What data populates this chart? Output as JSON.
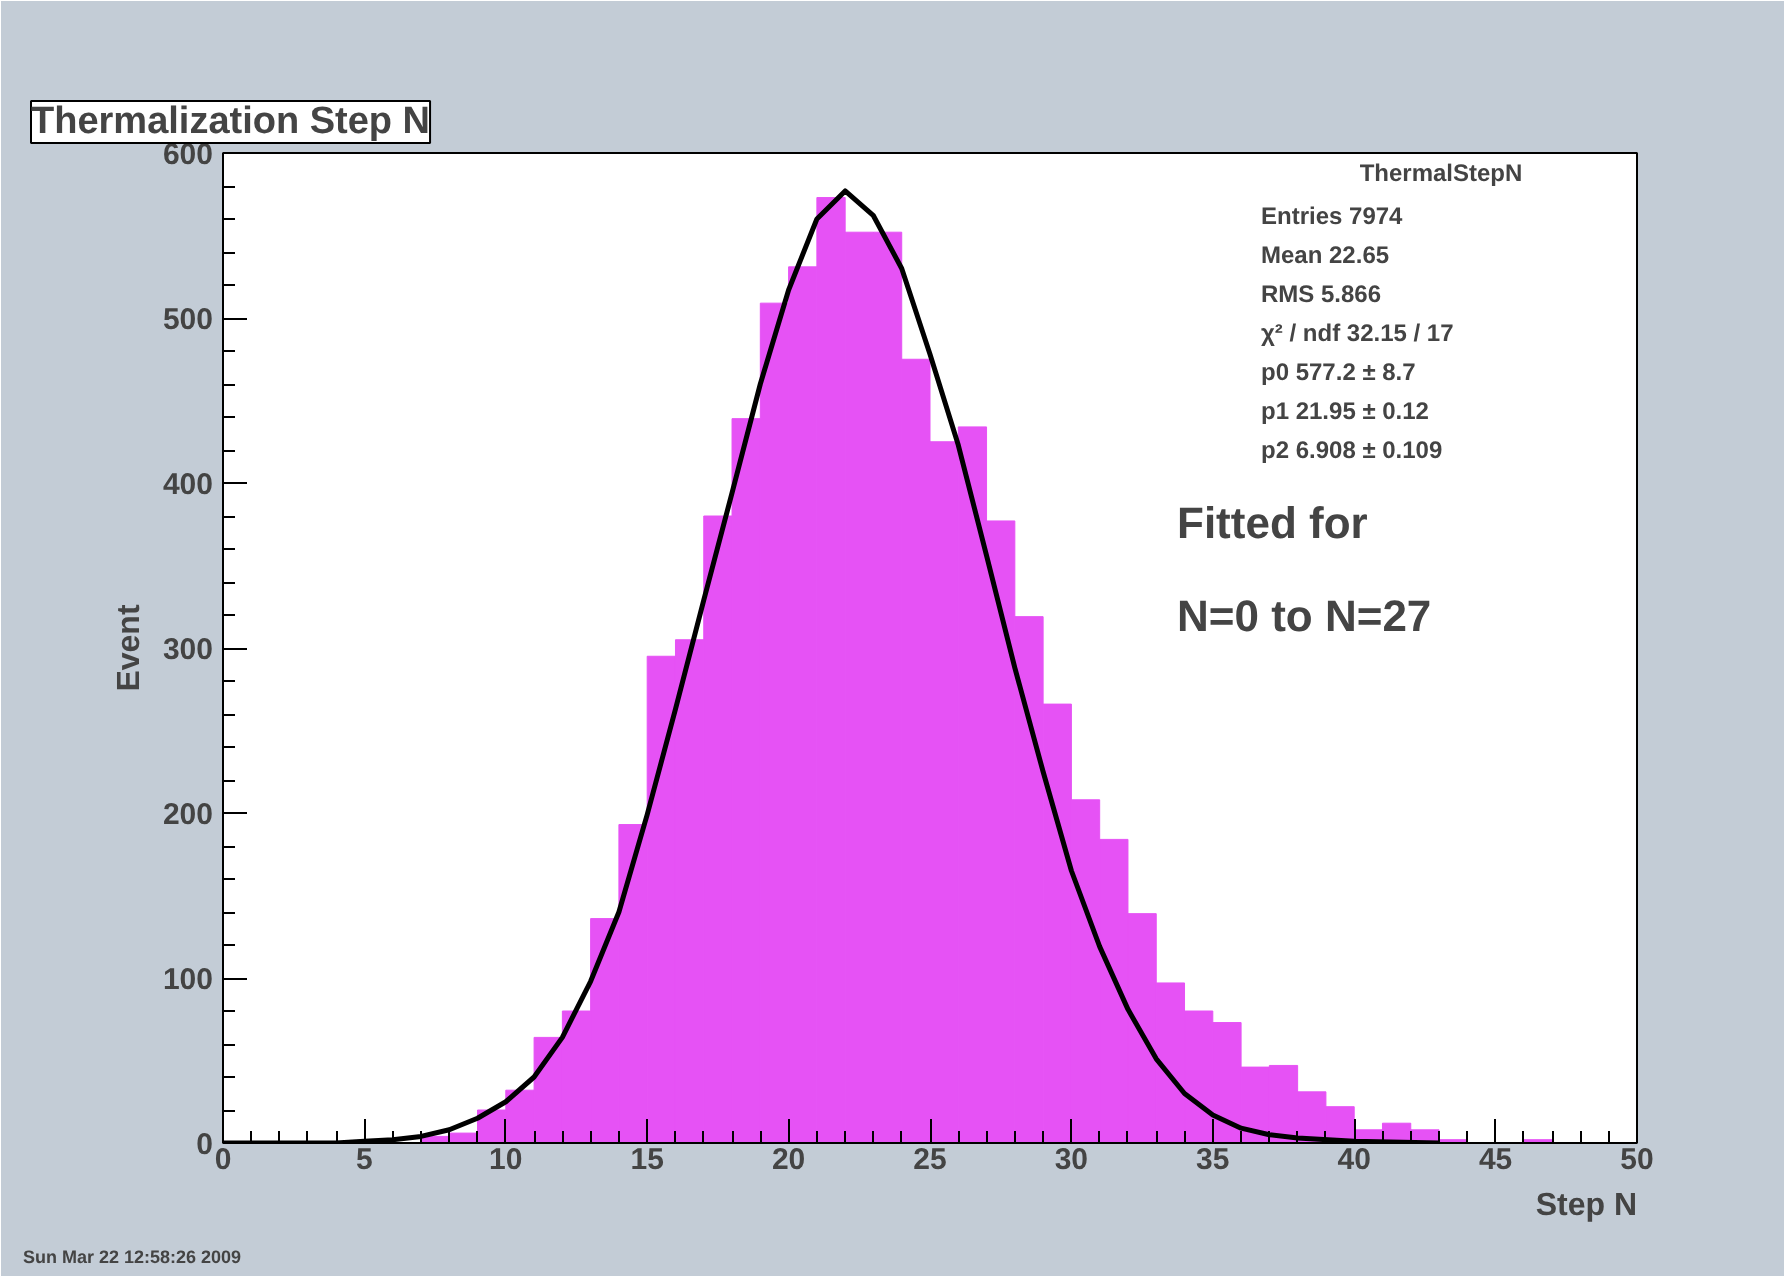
{
  "chart_data": {
    "type": "histogram",
    "title": "Thermalization Step N",
    "xlabel": "Step N",
    "ylabel": "Event",
    "bins": [
      0,
      1,
      2,
      3,
      4,
      5,
      6,
      7,
      8,
      9,
      10,
      11,
      12,
      13,
      14,
      15,
      16,
      17,
      18,
      19,
      20,
      21,
      22,
      23,
      24,
      25,
      26,
      27,
      28,
      29,
      30,
      31,
      32,
      33,
      34,
      35,
      36,
      37,
      38,
      39,
      40,
      41,
      42,
      43,
      44,
      45,
      46,
      47,
      48,
      49,
      50
    ],
    "values": [
      0,
      0,
      0,
      0,
      0,
      0,
      null,
      4,
      6,
      20,
      32,
      64,
      80,
      136,
      193,
      295,
      305,
      380,
      439,
      509,
      531,
      573,
      552,
      552,
      475,
      425,
      434,
      377,
      319,
      266,
      208,
      184,
      139,
      97,
      80,
      73,
      46,
      47,
      31,
      22,
      8,
      12,
      8,
      2,
      null,
      0,
      2,
      null,
      0,
      0
    ],
    "color": "#e652f5",
    "series": [
      {
        "type": "line",
        "color": "#000000",
        "x": [
          0,
          1,
          2,
          3,
          4,
          5,
          6,
          7,
          8,
          9,
          10,
          11,
          12,
          13,
          14,
          15,
          16,
          17,
          18,
          19,
          20,
          21,
          22,
          23,
          24,
          25,
          26,
          27,
          28,
          29,
          30,
          31,
          32,
          33,
          34,
          35,
          36,
          37,
          38,
          40,
          43
        ],
        "values": [
          0,
          0,
          0,
          0,
          0,
          1,
          2,
          4,
          8,
          15,
          25,
          40,
          64,
          98,
          140,
          199,
          263,
          329,
          394,
          460,
          517,
          560,
          577,
          562,
          530,
          478,
          423,
          356,
          288,
          225,
          165,
          119,
          81,
          51,
          30,
          17,
          9,
          5,
          3,
          1,
          0
        ]
      }
    ],
    "xlim": [
      0,
      50
    ],
    "ylim": [
      0,
      600
    ],
    "xticks": [
      0,
      5,
      10,
      15,
      20,
      25,
      30,
      35,
      40,
      45,
      50
    ],
    "yticks": [
      0,
      100,
      200,
      300,
      400,
      500,
      600
    ],
    "grid": false,
    "annotations": [
      "ThermalStepN",
      "Entries 7974",
      "Mean 22.65",
      "RMS 5.866",
      "χ² / ndf 32.15 / 17",
      "p0 577.2 ± 8.7",
      "p1 21.95 ± 0.12",
      "p2 6.908 ± 0.109",
      "Fitted for",
      "N=0 to N=27",
      "Sun Mar 22 12:58:26 2009"
    ]
  }
}
